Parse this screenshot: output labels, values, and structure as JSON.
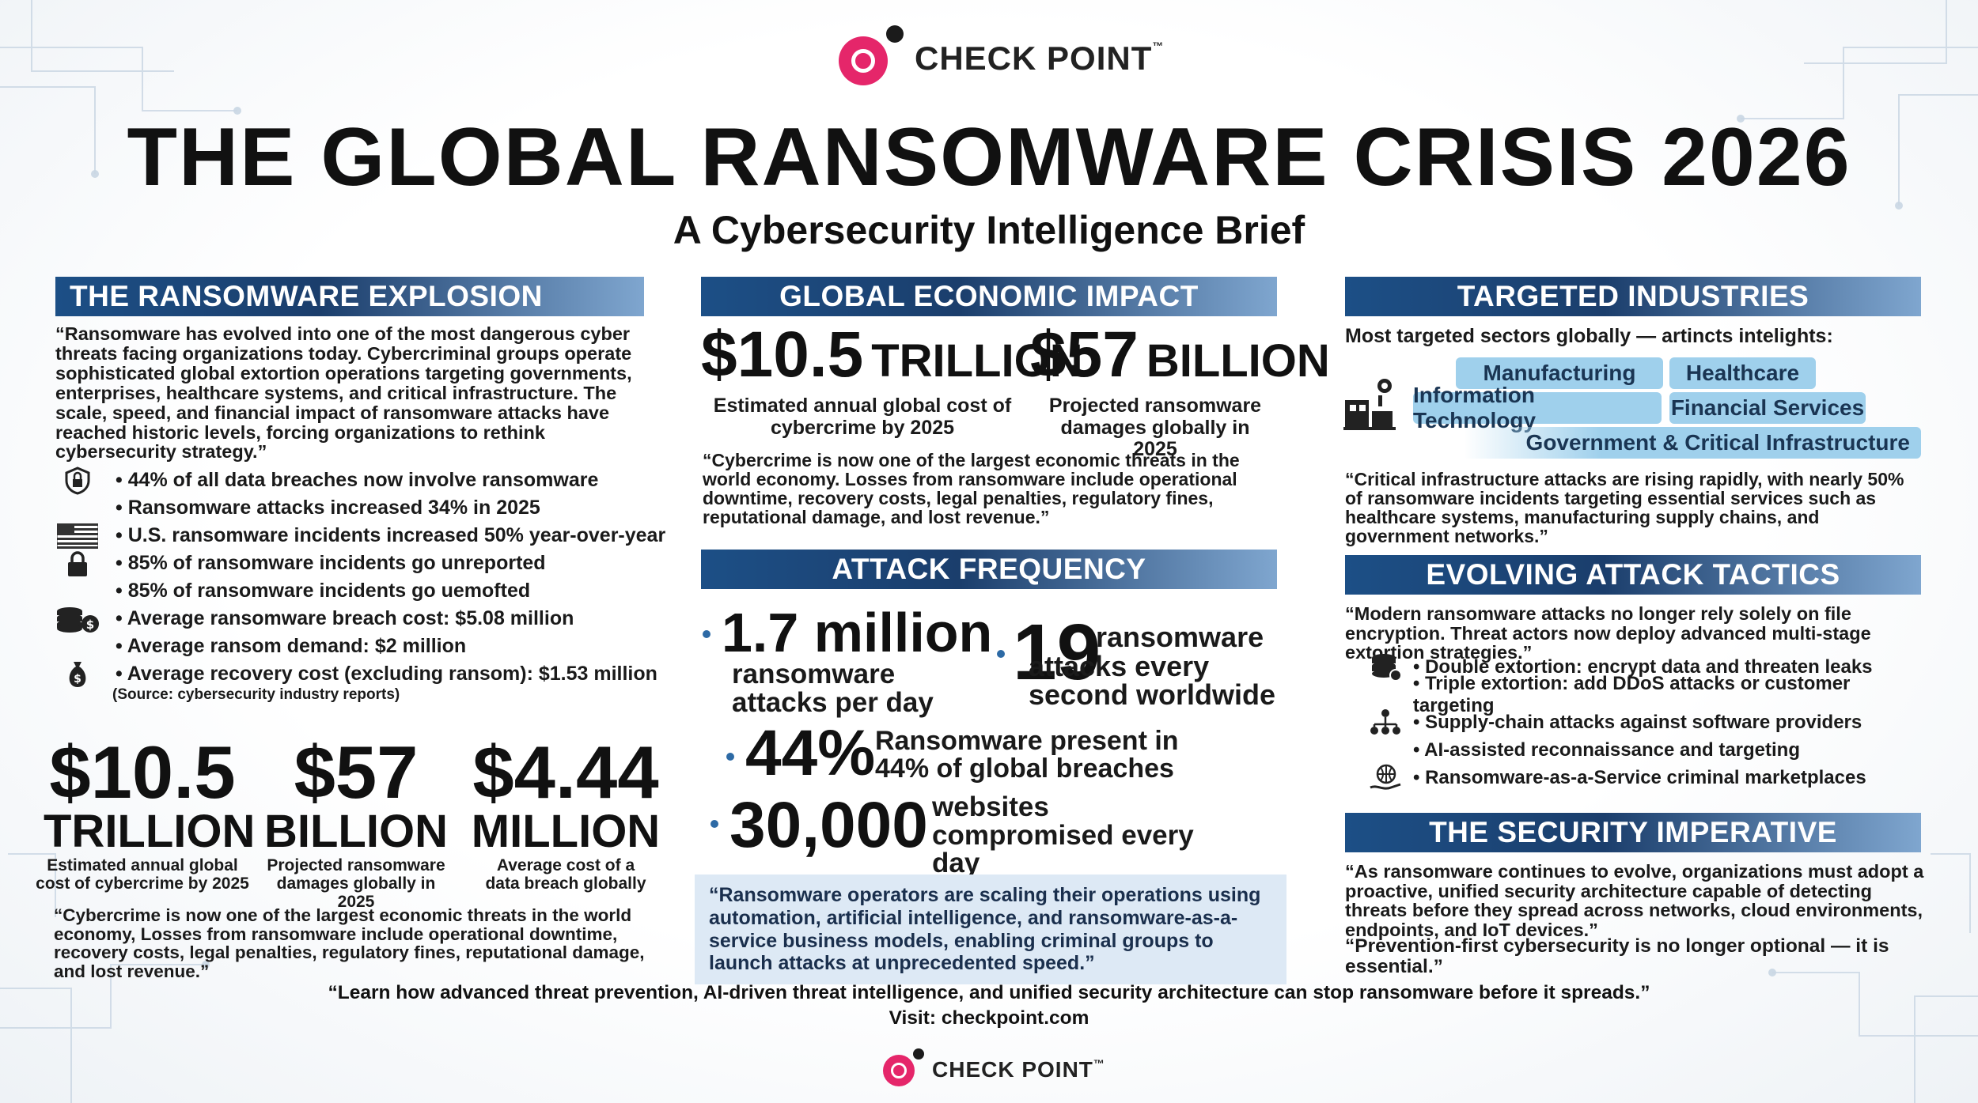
{
  "header": {
    "brand": "CHECK POINT",
    "title": "THE GLOBAL RANSOMWARE CRISIS 2026",
    "subtitle": "A Cybersecurity Intelligence Brief"
  },
  "explosion": {
    "heading": "THE RANSOMWARE EXPLOSION",
    "quote": "“Ransomware has evolved into one of the most dangerous cyber threats facing organizations today. Cybercriminal groups operate sophisticated global extortion operations targeting governments, enterprises, healthcare systems, and critical infrastructure. The scale, speed, and financial impact of ransomware attacks have reached historic levels, forcing organizations to rethink cybersecurity strategy.”",
    "bullets": [
      {
        "icon": "lock-shield-icon",
        "text": "• 44% of all data breaches now involve ransomware"
      },
      {
        "icon": "",
        "text": "• Ransomware attacks increased 34% in 2025"
      },
      {
        "icon": "us-flag-icon",
        "text": "• U.S. ransomware incidents increased 50% year-over-year"
      },
      {
        "icon": "padlock-icon",
        "text": "• 85% of ransomware incidents go unreported"
      },
      {
        "icon": "",
        "text": "• 85% of ransomware incidents go uemofted"
      },
      {
        "icon": "coins-icon",
        "text": "• Average ransomware breach cost: $5.08 million"
      },
      {
        "icon": "",
        "text": "• Average ransom demand: $2 million"
      },
      {
        "icon": "money-bag-icon",
        "text": "• Average recovery cost (excluding ransom): $1.53 million"
      }
    ],
    "source": "(Source: cybersecurity industry reports)",
    "stats": [
      {
        "value": "$10.5",
        "unit": "TRILLION",
        "caption": "Estimated annual global cost of cybercrime by 2025"
      },
      {
        "value": "$57",
        "unit": "BILLION",
        "caption": "Projected ransomware damages globally in 2025"
      },
      {
        "value": "$4.44",
        "unit": "MILLION",
        "caption": "Average cost of a data breach globally"
      }
    ],
    "bottom_quote": "“Cybercrime is now one of the largest economic threats in the world economy, Losses from ransomware include operational downtime, recovery costs, legal penalties, regulatory fines, reputational damage, and lost revenue.”"
  },
  "economic": {
    "heading": "GLOBAL ECONOMIC IMPACT",
    "stat1": {
      "value": "$10.5",
      "unit": "TRILLION",
      "caption": "Estimated annual global cost of cybercrime by 2025"
    },
    "stat2": {
      "value": "$57",
      "unit": "BILLION",
      "caption": "Projected ransomware damages globally in 2025"
    },
    "quote": "“Cybercrime is now one of the largest economic threats in the world economy. Losses from ransomware include operational downtime, recovery costs, legal penalties, regulatory fines, reputational damage, and lost revenue.”"
  },
  "frequency": {
    "heading": "ATTACK FREQUENCY",
    "items": [
      {
        "value": "1.7 million",
        "label": "ransomware attacks per day"
      },
      {
        "value": "19",
        "label": "ransomware attacks every second worldwide"
      },
      {
        "value": "44%",
        "label": "Ransomware present in 44% of global breaches"
      },
      {
        "value": "30,000",
        "label": "websites compromised every day"
      }
    ],
    "callout": "“Ransomware operators are scaling their operations using automation, artificial intelligence, and ransomware-as-a-service business models, enabling criminal groups to launch attacks at unprecedented speed.”"
  },
  "industries": {
    "heading": "TARGETED INDUSTRIES",
    "intro": "Most targeted sectors globally — artincts intelights:",
    "chips": [
      "Manufacturing",
      "Healthcare",
      "Information Technology",
      "Financial Services",
      "Government & Critical Infrastructure"
    ],
    "quote": "“Critical infrastructure attacks are rising rapidly, with nearly 50% of ransomware incidents targeting essential services such as healthcare systems, manufacturing supply chains, and government networks.”"
  },
  "tactics": {
    "heading": "EVOLVING ATTACK TACTICS",
    "quote": "“Modern ransomware attacks no longer rely solely on file encryption. Threat actors now deploy advanced multi-stage extortion strategies.”",
    "bullets": [
      {
        "icon": "database-icon",
        "text": "• Double extortion: encrypt data and threaten leaks"
      },
      {
        "icon": "",
        "text": "• Triple extortion: add DDoS attacks or customer targeting"
      },
      {
        "icon": "network-hierarchy-icon",
        "text": "• Supply-chain attacks against software providers"
      },
      {
        "icon": "",
        "text": "• AI-assisted reconnaissance and targeting"
      },
      {
        "icon": "globe-hand-icon",
        "text": "• Ransomware-as-a-Service criminal marketplaces"
      }
    ]
  },
  "imperative": {
    "heading": "THE SECURITY IMPERATIVE",
    "quote": "“As ransomware continues to evolve, organizations must adopt a proactive, unified security architecture capable of detecting threats before they spread across networks, cloud environments, endpoints, and IoT devices.”",
    "closing": "“Prevention-first cybersecurity is no longer optional — it is essential.”"
  },
  "footer": {
    "cta": "“Learn how advanced threat prevention, AI-driven threat intelligence, and unified security architecture can stop ransomware before it spreads.”",
    "visit_label": "Visit:",
    "visit_url": "checkpoint.com",
    "brand": "CHECK POINT"
  },
  "colors": {
    "brand_pink": "#e5266a",
    "banner_navy": "#1b3e6c",
    "chip_blue": "#9fd0ec",
    "callout_bg": "#dde9f5"
  }
}
